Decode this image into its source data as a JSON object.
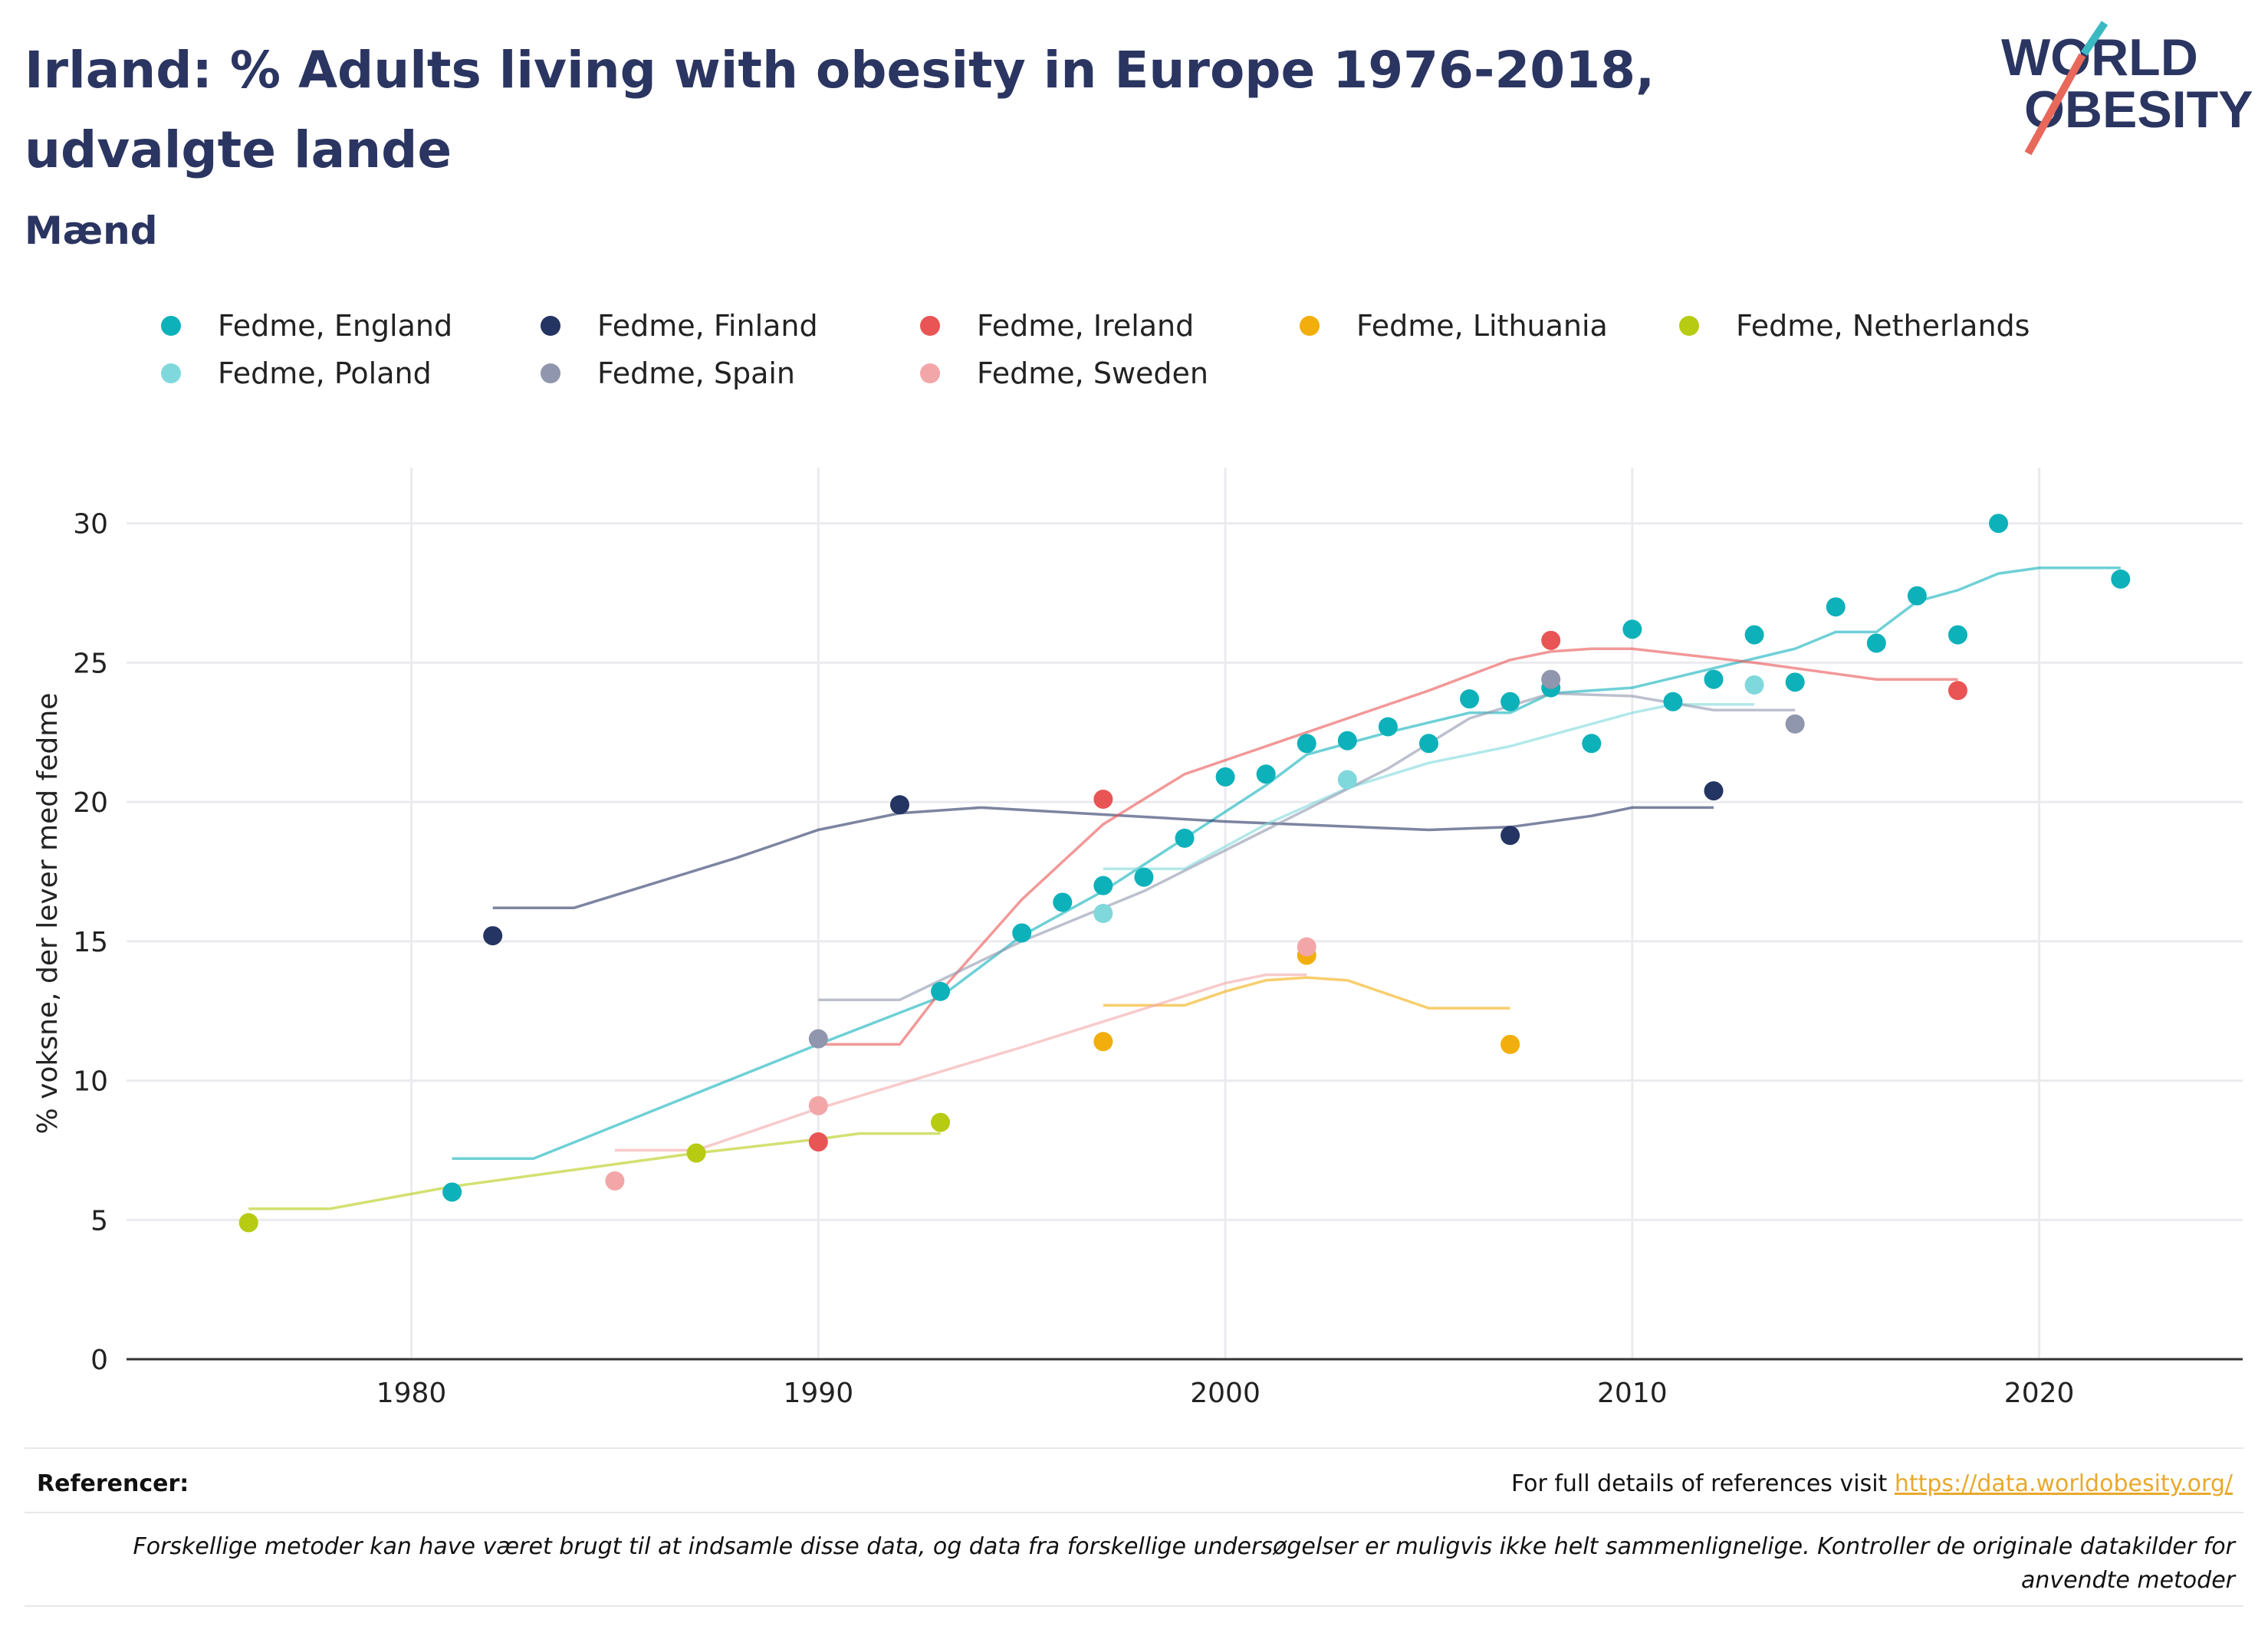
{
  "header": {
    "title": "Irland: % Adults living with obesity in Europe 1976-2018, udvalgte lande",
    "subtitle": "Mænd",
    "logo_line1": "WORLD",
    "logo_line2": "OBESITY"
  },
  "colors": {
    "title": "#2b3561",
    "axis": "#333333",
    "grid": "#ebebef",
    "link": "#e9a92c"
  },
  "footer": {
    "refs_label": "Referencer:",
    "refs_text": "For full details of references visit ",
    "refs_link": "https://data.worldobesity.org/",
    "note": "Forskellige metoder kan have været brugt til at indsamle disse data, og data fra forskellige undersøgelser er muligvis ikke helt sammenlignelige. Kontroller de originale datakilder for anvendte metoder"
  },
  "chart_data": {
    "type": "scatter",
    "ylabel": "% voksne, der lever med fedme",
    "xlabel": "",
    "xlim": [
      1973,
      2025
    ],
    "ylim": [
      0,
      32
    ],
    "xticks": [
      1980,
      1990,
      2000,
      2010,
      2020
    ],
    "yticks": [
      0,
      5,
      10,
      15,
      20,
      25,
      30
    ],
    "grid": true,
    "legend_position": "top",
    "series": [
      {
        "name": "Fedme, England",
        "color": "#0db1ba",
        "points": [
          [
            1981,
            6.0
          ],
          [
            1993,
            13.2
          ],
          [
            1995,
            15.3
          ],
          [
            1996,
            16.4
          ],
          [
            1997,
            17.0
          ],
          [
            1998,
            17.3
          ],
          [
            1999,
            18.7
          ],
          [
            2000,
            20.9
          ],
          [
            2001,
            21.0
          ],
          [
            2002,
            22.1
          ],
          [
            2003,
            22.2
          ],
          [
            2004,
            22.7
          ],
          [
            2005,
            22.1
          ],
          [
            2006,
            23.7
          ],
          [
            2007,
            23.6
          ],
          [
            2008,
            24.1
          ],
          [
            2009,
            22.1
          ],
          [
            2010,
            26.2
          ],
          [
            2011,
            23.6
          ],
          [
            2012,
            24.4
          ],
          [
            2013,
            26.0
          ],
          [
            2014,
            24.3
          ],
          [
            2015,
            27.0
          ],
          [
            2016,
            25.7
          ],
          [
            2017,
            27.4
          ],
          [
            2018,
            26.0
          ],
          [
            2019,
            30.0
          ],
          [
            2022,
            28.0
          ]
        ],
        "trend": [
          [
            1981,
            7.2
          ],
          [
            1983,
            7.2
          ],
          [
            1990,
            11.3
          ],
          [
            1993,
            13.0
          ],
          [
            1995,
            15.2
          ],
          [
            1997,
            16.8
          ],
          [
            1999,
            18.7
          ],
          [
            2001,
            20.6
          ],
          [
            2002,
            21.7
          ],
          [
            2004,
            22.5
          ],
          [
            2006,
            23.2
          ],
          [
            2007,
            23.2
          ],
          [
            2008,
            23.9
          ],
          [
            2010,
            24.1
          ],
          [
            2012,
            24.8
          ],
          [
            2014,
            25.5
          ],
          [
            2015,
            26.1
          ],
          [
            2016,
            26.1
          ],
          [
            2017,
            27.2
          ],
          [
            2018,
            27.6
          ],
          [
            2019,
            28.2
          ],
          [
            2020,
            28.4
          ],
          [
            2022,
            28.4
          ]
        ]
      },
      {
        "name": "Fedme, Finland",
        "color": "#243463",
        "points": [
          [
            1982,
            15.2
          ],
          [
            1992,
            19.9
          ],
          [
            2007,
            18.8
          ],
          [
            2012,
            20.4
          ]
        ],
        "trend": [
          [
            1982,
            16.2
          ],
          [
            1984,
            16.2
          ],
          [
            1988,
            18.0
          ],
          [
            1990,
            19.0
          ],
          [
            1992,
            19.6
          ],
          [
            1994,
            19.8
          ],
          [
            2000,
            19.3
          ],
          [
            2005,
            19.0
          ],
          [
            2007,
            19.1
          ],
          [
            2009,
            19.5
          ],
          [
            2010,
            19.8
          ],
          [
            2012,
            19.8
          ]
        ]
      },
      {
        "name": "Fedme, Ireland",
        "color": "#e95454",
        "points": [
          [
            1990,
            7.8
          ],
          [
            1997,
            20.1
          ],
          [
            2008,
            25.8
          ],
          [
            2018,
            24.0
          ]
        ],
        "trend": [
          [
            1990,
            11.3
          ],
          [
            1992,
            11.3
          ],
          [
            1993,
            13.2
          ],
          [
            1995,
            16.5
          ],
          [
            1997,
            19.2
          ],
          [
            1999,
            21.0
          ],
          [
            2002,
            22.5
          ],
          [
            2005,
            24.0
          ],
          [
            2007,
            25.1
          ],
          [
            2008,
            25.4
          ],
          [
            2009,
            25.5
          ],
          [
            2010,
            25.5
          ],
          [
            2013,
            25.0
          ],
          [
            2016,
            24.4
          ],
          [
            2018,
            24.4
          ]
        ]
      },
      {
        "name": "Fedme, Lithuania",
        "color": "#f2ae0c",
        "points": [
          [
            1997,
            11.4
          ],
          [
            2002,
            14.5
          ],
          [
            2007,
            11.3
          ]
        ],
        "trend": [
          [
            1997,
            12.7
          ],
          [
            1999,
            12.7
          ],
          [
            2000,
            13.2
          ],
          [
            2001,
            13.6
          ],
          [
            2002,
            13.7
          ],
          [
            2003,
            13.6
          ],
          [
            2004,
            13.1
          ],
          [
            2005,
            12.6
          ],
          [
            2007,
            12.6
          ]
        ]
      },
      {
        "name": "Fedme, Netherlands",
        "color": "#b6cb11",
        "points": [
          [
            1976,
            4.9
          ],
          [
            1987,
            7.4
          ],
          [
            1993,
            8.5
          ]
        ],
        "trend": [
          [
            1976,
            5.4
          ],
          [
            1978,
            5.4
          ],
          [
            1981,
            6.2
          ],
          [
            1987,
            7.4
          ],
          [
            1990,
            7.9
          ],
          [
            1991,
            8.1
          ],
          [
            1993,
            8.1
          ]
        ]
      },
      {
        "name": "Fedme, Poland",
        "color": "#7fd8dc",
        "points": [
          [
            1997,
            16.0
          ],
          [
            2003,
            20.8
          ],
          [
            2013,
            24.2
          ]
        ],
        "trend": [
          [
            1997,
            17.6
          ],
          [
            1999,
            17.6
          ],
          [
            2001,
            19.2
          ],
          [
            2003,
            20.5
          ],
          [
            2005,
            21.4
          ],
          [
            2007,
            22.0
          ],
          [
            2010,
            23.2
          ],
          [
            2011,
            23.5
          ],
          [
            2013,
            23.5
          ]
        ]
      },
      {
        "name": "Fedme, Spain",
        "color": "#9096ad",
        "points": [
          [
            1990,
            11.5
          ],
          [
            2008,
            24.4
          ],
          [
            2014,
            22.8
          ]
        ],
        "trend": [
          [
            1990,
            12.9
          ],
          [
            1992,
            12.9
          ],
          [
            1995,
            15.0
          ],
          [
            1998,
            16.8
          ],
          [
            2001,
            19.0
          ],
          [
            2004,
            21.2
          ],
          [
            2006,
            23.0
          ],
          [
            2008,
            23.9
          ],
          [
            2010,
            23.8
          ],
          [
            2012,
            23.3
          ],
          [
            2014,
            23.3
          ]
        ]
      },
      {
        "name": "Fedme, Sweden",
        "color": "#f3a6a8",
        "points": [
          [
            1985,
            6.4
          ],
          [
            1990,
            9.1
          ],
          [
            2002,
            14.8
          ]
        ],
        "trend": [
          [
            1985,
            7.5
          ],
          [
            1987,
            7.5
          ],
          [
            1990,
            9.0
          ],
          [
            1995,
            11.2
          ],
          [
            2000,
            13.5
          ],
          [
            2001,
            13.8
          ],
          [
            2002,
            13.8
          ]
        ]
      }
    ]
  }
}
